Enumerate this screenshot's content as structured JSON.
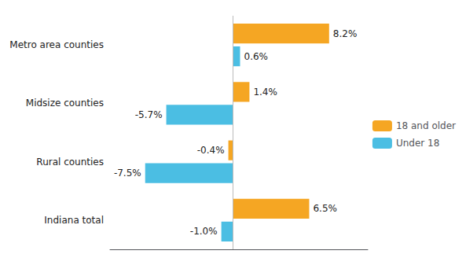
{
  "chart_data": {
    "type": "bar",
    "orientation": "horizontal",
    "categories": [
      "Metro area counties",
      "Midsize counties",
      "Rural counties",
      "Indiana total"
    ],
    "series": [
      {
        "name": "18 and older",
        "color": "#F5A623",
        "values": [
          8.2,
          1.4,
          -0.4,
          6.5
        ],
        "value_labels": [
          "8.2%",
          "1.4%",
          "-0.4%",
          "6.5%"
        ]
      },
      {
        "name": "Under 18",
        "color": "#4BBEE3",
        "values": [
          0.6,
          -5.7,
          -7.5,
          -1.0
        ],
        "value_labels": [
          "0.6%",
          "-5.7%",
          "-7.5%",
          "-1.0%"
        ]
      }
    ],
    "xlim": [
      -10.5,
      11.5
    ],
    "xticks": [],
    "tick_labels": "y",
    "data_labels": true,
    "legend": "right",
    "grid": false
  }
}
